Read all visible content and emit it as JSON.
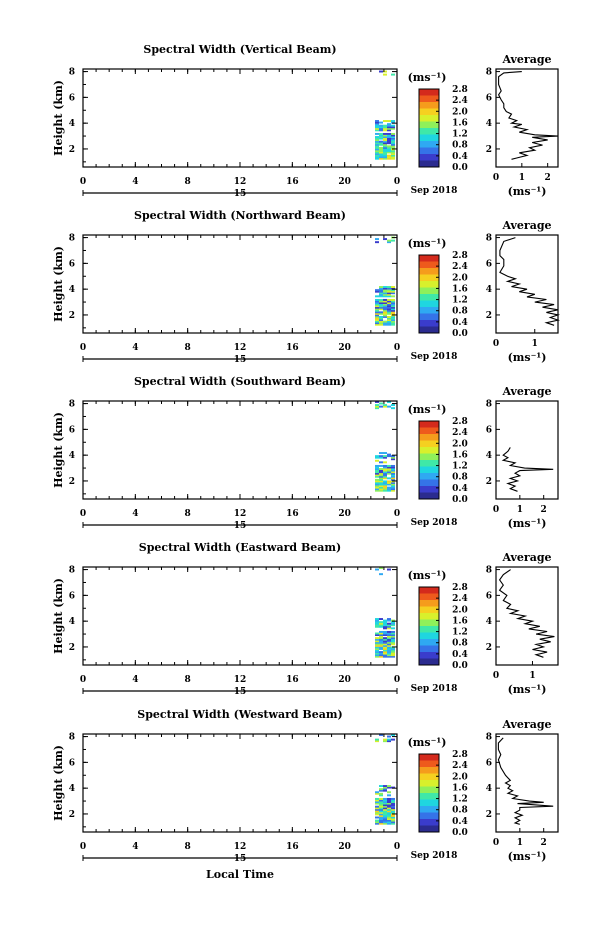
{
  "chart_data": [
    {
      "type": "heatmap",
      "title": "Spectral Width (Vertical Beam)",
      "ylabel": "Height (km)",
      "xlabel": "",
      "x_ticks": [
        "0",
        "4",
        "8",
        "12",
        "16",
        "20",
        "0"
      ],
      "y_ticks": [
        "2",
        "4",
        "6",
        "8"
      ],
      "date_marker": "15",
      "date_label": "Sep 2018",
      "colorbar": {
        "unit": "(ms⁻¹)",
        "ticks": [
          "0.0",
          "0.4",
          "0.8",
          "1.2",
          "1.6",
          "2.0",
          "2.4",
          "2.8"
        ]
      },
      "average": {
        "title": "Average",
        "xlabel": "(ms⁻¹)",
        "x_ticks": [
          "0",
          "1",
          "2"
        ],
        "y_ticks": [
          "2",
          "4",
          "6",
          "8"
        ],
        "xlim": [
          0,
          2.4
        ],
        "ylim": [
          0.6,
          8.2
        ],
        "profile": [
          [
            1.0,
            8.0
          ],
          [
            0.3,
            7.9
          ],
          [
            0.1,
            7.6
          ],
          [
            0.1,
            7.0
          ],
          [
            0.2,
            6.5
          ],
          [
            0.1,
            6.2
          ],
          [
            0.2,
            5.8
          ],
          [
            0.3,
            5.5
          ],
          [
            0.3,
            5.2
          ],
          [
            0.4,
            4.9
          ],
          [
            0.6,
            4.7
          ],
          [
            0.5,
            4.4
          ],
          [
            0.8,
            4.2
          ],
          [
            0.6,
            4.0
          ],
          [
            1.0,
            3.9
          ],
          [
            0.7,
            3.7
          ],
          [
            1.2,
            3.5
          ],
          [
            0.9,
            3.3
          ],
          [
            1.5,
            3.1
          ],
          [
            2.4,
            3.0
          ],
          [
            1.4,
            2.9
          ],
          [
            2.0,
            2.7
          ],
          [
            1.4,
            2.5
          ],
          [
            1.8,
            2.3
          ],
          [
            1.3,
            2.1
          ],
          [
            1.5,
            1.9
          ],
          [
            0.9,
            1.7
          ],
          [
            1.2,
            1.5
          ],
          [
            0.8,
            1.3
          ],
          [
            0.6,
            1.2
          ]
        ]
      }
    },
    {
      "type": "heatmap",
      "title": "Spectral Width (Northward Beam)",
      "ylabel": "Height (km)",
      "xlabel": "",
      "x_ticks": [
        "0",
        "4",
        "8",
        "12",
        "16",
        "20",
        "0"
      ],
      "y_ticks": [
        "2",
        "4",
        "6",
        "8"
      ],
      "date_marker": "15",
      "date_label": "Sep 2018",
      "colorbar": {
        "unit": "(ms⁻¹)",
        "ticks": [
          "0.0",
          "0.4",
          "0.8",
          "1.2",
          "1.6",
          "2.0",
          "2.4",
          "2.8"
        ]
      },
      "average": {
        "title": "Average",
        "xlabel": "(ms⁻¹)",
        "x_ticks": [
          "0",
          "1"
        ],
        "y_ticks": [
          "2",
          "4",
          "6",
          "8"
        ],
        "xlim": [
          0,
          1.6
        ],
        "ylim": [
          0.6,
          8.2
        ],
        "profile": [
          [
            0.5,
            8.0
          ],
          [
            0.2,
            7.7
          ],
          [
            0.1,
            7.0
          ],
          [
            0.1,
            6.6
          ],
          [
            0.2,
            6.3
          ],
          [
            0.2,
            5.8
          ],
          [
            0.1,
            5.3
          ],
          [
            0.3,
            5.0
          ],
          [
            0.5,
            4.8
          ],
          [
            0.3,
            4.6
          ],
          [
            0.6,
            4.4
          ],
          [
            0.4,
            4.2
          ],
          [
            0.8,
            4.0
          ],
          [
            0.6,
            3.8
          ],
          [
            1.0,
            3.6
          ],
          [
            0.8,
            3.4
          ],
          [
            1.3,
            3.2
          ],
          [
            1.0,
            3.0
          ],
          [
            1.5,
            2.8
          ],
          [
            1.2,
            2.6
          ],
          [
            1.6,
            2.4
          ],
          [
            1.3,
            2.2
          ],
          [
            1.6,
            2.0
          ],
          [
            1.4,
            1.8
          ],
          [
            1.6,
            1.6
          ],
          [
            1.3,
            1.4
          ],
          [
            1.5,
            1.2
          ]
        ]
      }
    },
    {
      "type": "heatmap",
      "title": "Spectral Width (Southward Beam)",
      "ylabel": "Height (km)",
      "xlabel": "",
      "x_ticks": [
        "0",
        "4",
        "8",
        "12",
        "16",
        "20",
        "0"
      ],
      "y_ticks": [
        "2",
        "4",
        "6",
        "8"
      ],
      "date_marker": "15",
      "date_label": "Sep 2018",
      "colorbar": {
        "unit": "(ms⁻¹)",
        "ticks": [
          "0.0",
          "0.4",
          "0.8",
          "1.2",
          "1.6",
          "2.0",
          "2.4",
          "2.8"
        ]
      },
      "average": {
        "title": "Average",
        "xlabel": "(ms⁻¹)",
        "x_ticks": [
          "0",
          "1",
          "2"
        ],
        "y_ticks": [
          "2",
          "4",
          "6",
          "8"
        ],
        "xlim": [
          0,
          2.6
        ],
        "ylim": [
          0.6,
          8.2
        ],
        "profile": [
          [
            0.6,
            4.6
          ],
          [
            0.5,
            4.3
          ],
          [
            0.3,
            4.0
          ],
          [
            0.5,
            3.8
          ],
          [
            0.3,
            3.6
          ],
          [
            0.8,
            3.4
          ],
          [
            0.6,
            3.2
          ],
          [
            1.2,
            3.0
          ],
          [
            2.4,
            2.9
          ],
          [
            1.0,
            2.8
          ],
          [
            0.8,
            2.6
          ],
          [
            1.0,
            2.4
          ],
          [
            0.6,
            2.2
          ],
          [
            0.9,
            2.0
          ],
          [
            0.5,
            1.8
          ],
          [
            0.8,
            1.6
          ],
          [
            0.6,
            1.4
          ],
          [
            0.9,
            1.2
          ]
        ]
      }
    },
    {
      "type": "heatmap",
      "title": "Spectral Width (Eastward Beam)",
      "ylabel": "Height (km)",
      "xlabel": "",
      "x_ticks": [
        "0",
        "4",
        "8",
        "12",
        "16",
        "20",
        "0"
      ],
      "y_ticks": [
        "2",
        "4",
        "6",
        "8"
      ],
      "date_marker": "15",
      "date_label": "Sep 2018",
      "colorbar": {
        "unit": "(ms⁻¹)",
        "ticks": [
          "0.0",
          "0.4",
          "0.8",
          "1.2",
          "1.6",
          "2.0",
          "2.4",
          "2.8"
        ]
      },
      "average": {
        "title": "Average",
        "xlabel": "(ms⁻¹)",
        "x_ticks": [
          "0",
          "1"
        ],
        "y_ticks": [
          "2",
          "4",
          "6",
          "8"
        ],
        "xlim": [
          0,
          1.7
        ],
        "ylim": [
          0.6,
          8.2
        ],
        "profile": [
          [
            0.4,
            8.0
          ],
          [
            0.2,
            7.6
          ],
          [
            0.1,
            7.2
          ],
          [
            0.2,
            6.8
          ],
          [
            0.1,
            6.4
          ],
          [
            0.3,
            6.0
          ],
          [
            0.2,
            5.6
          ],
          [
            0.4,
            5.3
          ],
          [
            0.3,
            5.0
          ],
          [
            0.6,
            4.8
          ],
          [
            0.4,
            4.6
          ],
          [
            0.8,
            4.4
          ],
          [
            0.6,
            4.2
          ],
          [
            1.0,
            4.0
          ],
          [
            0.8,
            3.8
          ],
          [
            1.2,
            3.6
          ],
          [
            0.9,
            3.4
          ],
          [
            1.4,
            3.2
          ],
          [
            1.1,
            3.0
          ],
          [
            1.6,
            2.8
          ],
          [
            1.2,
            2.6
          ],
          [
            1.5,
            2.4
          ],
          [
            1.1,
            2.2
          ],
          [
            1.3,
            2.0
          ],
          [
            1.0,
            1.8
          ],
          [
            1.4,
            1.6
          ],
          [
            1.1,
            1.4
          ],
          [
            1.3,
            1.2
          ]
        ]
      }
    },
    {
      "type": "heatmap",
      "title": "Spectral Width (Westward Beam)",
      "ylabel": "Height (km)",
      "xlabel": "Local Time",
      "x_ticks": [
        "0",
        "4",
        "8",
        "12",
        "16",
        "20",
        "0"
      ],
      "y_ticks": [
        "2",
        "4",
        "6",
        "8"
      ],
      "date_marker": "15",
      "date_label": "Sep 2018",
      "colorbar": {
        "unit": "(ms⁻¹)",
        "ticks": [
          "0.0",
          "0.4",
          "0.8",
          "1.2",
          "1.6",
          "2.0",
          "2.4",
          "2.8"
        ]
      },
      "average": {
        "title": "Average",
        "xlabel": "(ms⁻¹)",
        "x_ticks": [
          "0",
          "1",
          "2"
        ],
        "y_ticks": [
          "2",
          "4",
          "6",
          "8"
        ],
        "xlim": [
          0,
          2.6
        ],
        "ylim": [
          0.6,
          8.2
        ],
        "profile": [
          [
            0.3,
            7.9
          ],
          [
            0.1,
            7.5
          ],
          [
            0.1,
            7.0
          ],
          [
            0.2,
            6.6
          ],
          [
            0.1,
            6.2
          ],
          [
            0.2,
            5.6
          ],
          [
            0.4,
            5.0
          ],
          [
            0.6,
            4.6
          ],
          [
            0.4,
            4.4
          ],
          [
            0.6,
            4.2
          ],
          [
            0.5,
            4.0
          ],
          [
            0.7,
            3.8
          ],
          [
            0.5,
            3.6
          ],
          [
            0.9,
            3.4
          ],
          [
            0.7,
            3.2
          ],
          [
            1.4,
            3.0
          ],
          [
            2.0,
            2.9
          ],
          [
            0.9,
            2.8
          ],
          [
            2.4,
            2.6
          ],
          [
            1.0,
            2.5
          ],
          [
            1.0,
            2.3
          ],
          [
            0.8,
            2.1
          ],
          [
            1.1,
            1.9
          ],
          [
            0.8,
            1.7
          ],
          [
            1.0,
            1.5
          ],
          [
            0.8,
            1.3
          ],
          [
            1.0,
            1.2
          ]
        ]
      }
    }
  ],
  "colors": {
    "colormap": [
      "#2b2b8f",
      "#3a3ccc",
      "#3573e8",
      "#2fa9f2",
      "#1fd6e0",
      "#3fe8a8",
      "#8ff05a",
      "#d8f02c",
      "#f5d020",
      "#f59c1c",
      "#ee5a1c",
      "#d42a1c"
    ],
    "axis": "#000000",
    "profile_line": "#000000"
  }
}
